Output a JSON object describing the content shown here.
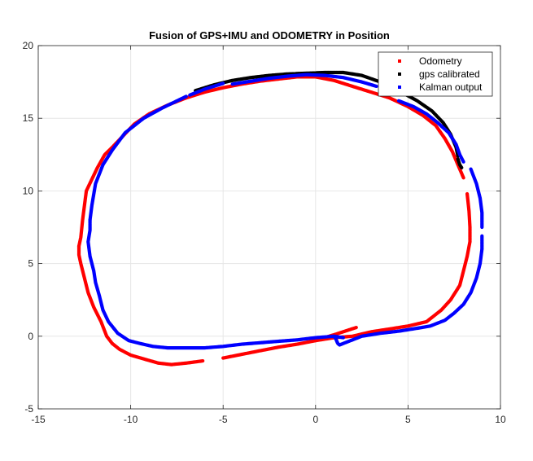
{
  "chart_data": {
    "type": "scatter",
    "title": "Fusion of GPS+IMU and ODOMETRY in Position",
    "xlabel": "",
    "ylabel": "",
    "xlim": [
      -15,
      10
    ],
    "ylim": [
      -5,
      20
    ],
    "xticks": [
      -15,
      -10,
      -5,
      0,
      5,
      10
    ],
    "yticks": [
      -5,
      0,
      5,
      10,
      15,
      20
    ],
    "xtick_labels": [
      "-15",
      "-10",
      "-5",
      "0",
      "5",
      "10"
    ],
    "ytick_labels": [
      "-5",
      "0",
      "5",
      "10",
      "15",
      "20"
    ],
    "grid": true,
    "legend_position": "top-right",
    "series": [
      {
        "name": "Odometry",
        "color": "#ff0000",
        "segments": [
          [
            [
              -12.8,
              6.2
            ],
            [
              -12.7,
              6.8
            ],
            [
              -12.6,
              8.0
            ],
            [
              -12.5,
              9.0
            ],
            [
              -12.4,
              10.0
            ],
            [
              -12.1,
              10.8
            ],
            [
              -11.8,
              11.6
            ],
            [
              -11.4,
              12.5
            ],
            [
              -11.0,
              13.0
            ],
            [
              -10.4,
              13.8
            ],
            [
              -9.8,
              14.6
            ],
            [
              -9.0,
              15.3
            ],
            [
              -8.0,
              15.9
            ],
            [
              -7.0,
              16.4
            ],
            [
              -6.0,
              16.8
            ],
            [
              -5.0,
              17.1
            ],
            [
              -4.0,
              17.35
            ],
            [
              -3.0,
              17.55
            ],
            [
              -2.0,
              17.7
            ],
            [
              -1.0,
              17.85
            ],
            [
              0.0,
              17.85
            ],
            [
              1.0,
              17.6
            ],
            [
              2.0,
              17.2
            ],
            [
              3.0,
              16.8
            ],
            [
              4.0,
              16.4
            ],
            [
              5.0,
              15.8
            ],
            [
              5.8,
              15.2
            ],
            [
              6.5,
              14.5
            ],
            [
              7.0,
              13.6
            ],
            [
              7.4,
              12.7
            ],
            [
              7.7,
              11.8
            ],
            [
              8.0,
              10.9
            ]
          ],
          [
            [
              8.2,
              9.8
            ],
            [
              8.3,
              8.6
            ],
            [
              8.35,
              7.5
            ],
            [
              8.35,
              6.5
            ],
            [
              8.2,
              5.5
            ],
            [
              8.0,
              4.5
            ],
            [
              7.8,
              3.5
            ],
            [
              7.3,
              2.5
            ],
            [
              6.8,
              1.8
            ],
            [
              6.0,
              1.0
            ],
            [
              5.0,
              0.7
            ],
            [
              4.0,
              0.5
            ],
            [
              3.0,
              0.3
            ],
            [
              2.0,
              0.0
            ],
            [
              1.0,
              -0.1
            ],
            [
              0.0,
              -0.3
            ]
          ],
          [
            [
              0.2,
              -0.2
            ],
            [
              1.0,
              0.1
            ],
            [
              2.2,
              0.6
            ]
          ],
          [
            [
              -5.0,
              -1.5
            ],
            [
              -4.0,
              -1.25
            ],
            [
              -3.0,
              -1.0
            ],
            [
              -2.0,
              -0.75
            ],
            [
              -1.0,
              -0.55
            ],
            [
              0.0,
              -0.3
            ]
          ],
          [
            [
              -6.1,
              -1.7
            ],
            [
              -7.0,
              -1.85
            ],
            [
              -7.8,
              -1.95
            ],
            [
              -8.5,
              -1.85
            ],
            [
              -9.2,
              -1.6
            ],
            [
              -10.0,
              -1.3
            ],
            [
              -10.6,
              -0.9
            ],
            [
              -11.0,
              -0.5
            ],
            [
              -11.3,
              0.0
            ],
            [
              -11.6,
              1.0
            ],
            [
              -12.0,
              2.0
            ],
            [
              -12.3,
              3.0
            ],
            [
              -12.5,
              4.0
            ],
            [
              -12.7,
              5.0
            ],
            [
              -12.8,
              5.6
            ],
            [
              -12.8,
              6.2
            ]
          ]
        ]
      },
      {
        "name": "gps calibrated",
        "color": "#000000",
        "segments": [
          [
            [
              -6.5,
              16.9
            ],
            [
              -5.5,
              17.3
            ],
            [
              -4.5,
              17.6
            ],
            [
              -3.5,
              17.8
            ],
            [
              -2.5,
              17.95
            ],
            [
              -1.5,
              18.05
            ],
            [
              -0.5,
              18.1
            ],
            [
              0.5,
              18.15
            ],
            [
              1.5,
              18.15
            ],
            [
              2.5,
              17.95
            ],
            [
              3.5,
              17.5
            ],
            [
              4.5,
              16.9
            ],
            [
              5.5,
              16.2
            ],
            [
              6.3,
              15.5
            ],
            [
              6.9,
              14.7
            ],
            [
              7.3,
              13.9
            ],
            [
              7.6,
              13.0
            ],
            [
              7.7,
              12.4
            ]
          ],
          [
            [
              7.7,
              12.2
            ],
            [
              7.8,
              11.8
            ],
            [
              7.9,
              11.6
            ]
          ]
        ]
      },
      {
        "name": "Kalman output",
        "color": "#0000ff",
        "segments": [
          [
            [
              -12.2,
              8.0
            ],
            [
              -12.1,
              9.0
            ],
            [
              -11.9,
              10.5
            ],
            [
              -11.5,
              11.8
            ],
            [
              -11.0,
              12.8
            ],
            [
              -10.3,
              14.0
            ],
            [
              -9.3,
              15.0
            ],
            [
              -8.3,
              15.7
            ],
            [
              -7.0,
              16.5
            ]
          ],
          [
            [
              -6.8,
              16.6
            ],
            [
              -6.0,
              17.0
            ],
            [
              -5.0,
              17.4
            ]
          ],
          [
            [
              -4.5,
              17.35
            ],
            [
              -3.5,
              17.55
            ],
            [
              -2.5,
              17.75
            ],
            [
              -1.5,
              17.9
            ],
            [
              -0.5,
              18.0
            ],
            [
              0.5,
              17.95
            ],
            [
              1.5,
              17.8
            ],
            [
              2.5,
              17.5
            ],
            [
              3.3,
              17.2
            ]
          ],
          [
            [
              4.5,
              16.2
            ],
            [
              5.3,
              15.8
            ],
            [
              6.0,
              15.3
            ],
            [
              6.6,
              14.7
            ],
            [
              7.2,
              14.0
            ],
            [
              7.6,
              13.2
            ],
            [
              7.8,
              12.5
            ],
            [
              8.0,
              12.0
            ]
          ],
          [
            [
              8.4,
              11.5
            ],
            [
              8.7,
              10.5
            ],
            [
              8.9,
              9.5
            ],
            [
              9.0,
              8.5
            ],
            [
              9.0,
              7.5
            ]
          ],
          [
            [
              9.0,
              6.9
            ],
            [
              9.0,
              6.0
            ],
            [
              8.9,
              5.0
            ],
            [
              8.7,
              4.0
            ],
            [
              8.4,
              3.0
            ],
            [
              8.0,
              2.2
            ],
            [
              7.5,
              1.6
            ],
            [
              7.0,
              1.1
            ],
            [
              6.2,
              0.7
            ],
            [
              5.5,
              0.55
            ],
            [
              4.5,
              0.35
            ],
            [
              3.5,
              0.2
            ],
            [
              2.5,
              0.0
            ],
            [
              1.7,
              -0.4
            ],
            [
              1.3,
              -0.6
            ],
            [
              1.2,
              -0.5
            ],
            [
              1.1,
              -0.2
            ],
            [
              1.0,
              0.0
            ]
          ],
          [
            [
              1.5,
              -0.1
            ],
            [
              1.0,
              0.0
            ],
            [
              0.0,
              -0.1
            ],
            [
              -1.0,
              -0.25
            ],
            [
              -2.0,
              -0.35
            ],
            [
              -3.0,
              -0.45
            ],
            [
              -4.0,
              -0.55
            ],
            [
              -5.0,
              -0.7
            ],
            [
              -6.0,
              -0.8
            ],
            [
              -7.0,
              -0.8
            ],
            [
              -8.0,
              -0.8
            ],
            [
              -8.8,
              -0.7
            ],
            [
              -9.5,
              -0.5
            ],
            [
              -10.1,
              -0.3
            ],
            [
              -10.7,
              0.2
            ],
            [
              -11.2,
              1.0
            ],
            [
              -11.5,
              1.8
            ],
            [
              -11.7,
              2.8
            ],
            [
              -11.9,
              3.7
            ],
            [
              -12.0,
              4.5
            ],
            [
              -12.2,
              5.5
            ],
            [
              -12.3,
              6.5
            ],
            [
              -12.2,
              7.3
            ],
            [
              -12.2,
              8.0
            ]
          ]
        ]
      }
    ]
  }
}
